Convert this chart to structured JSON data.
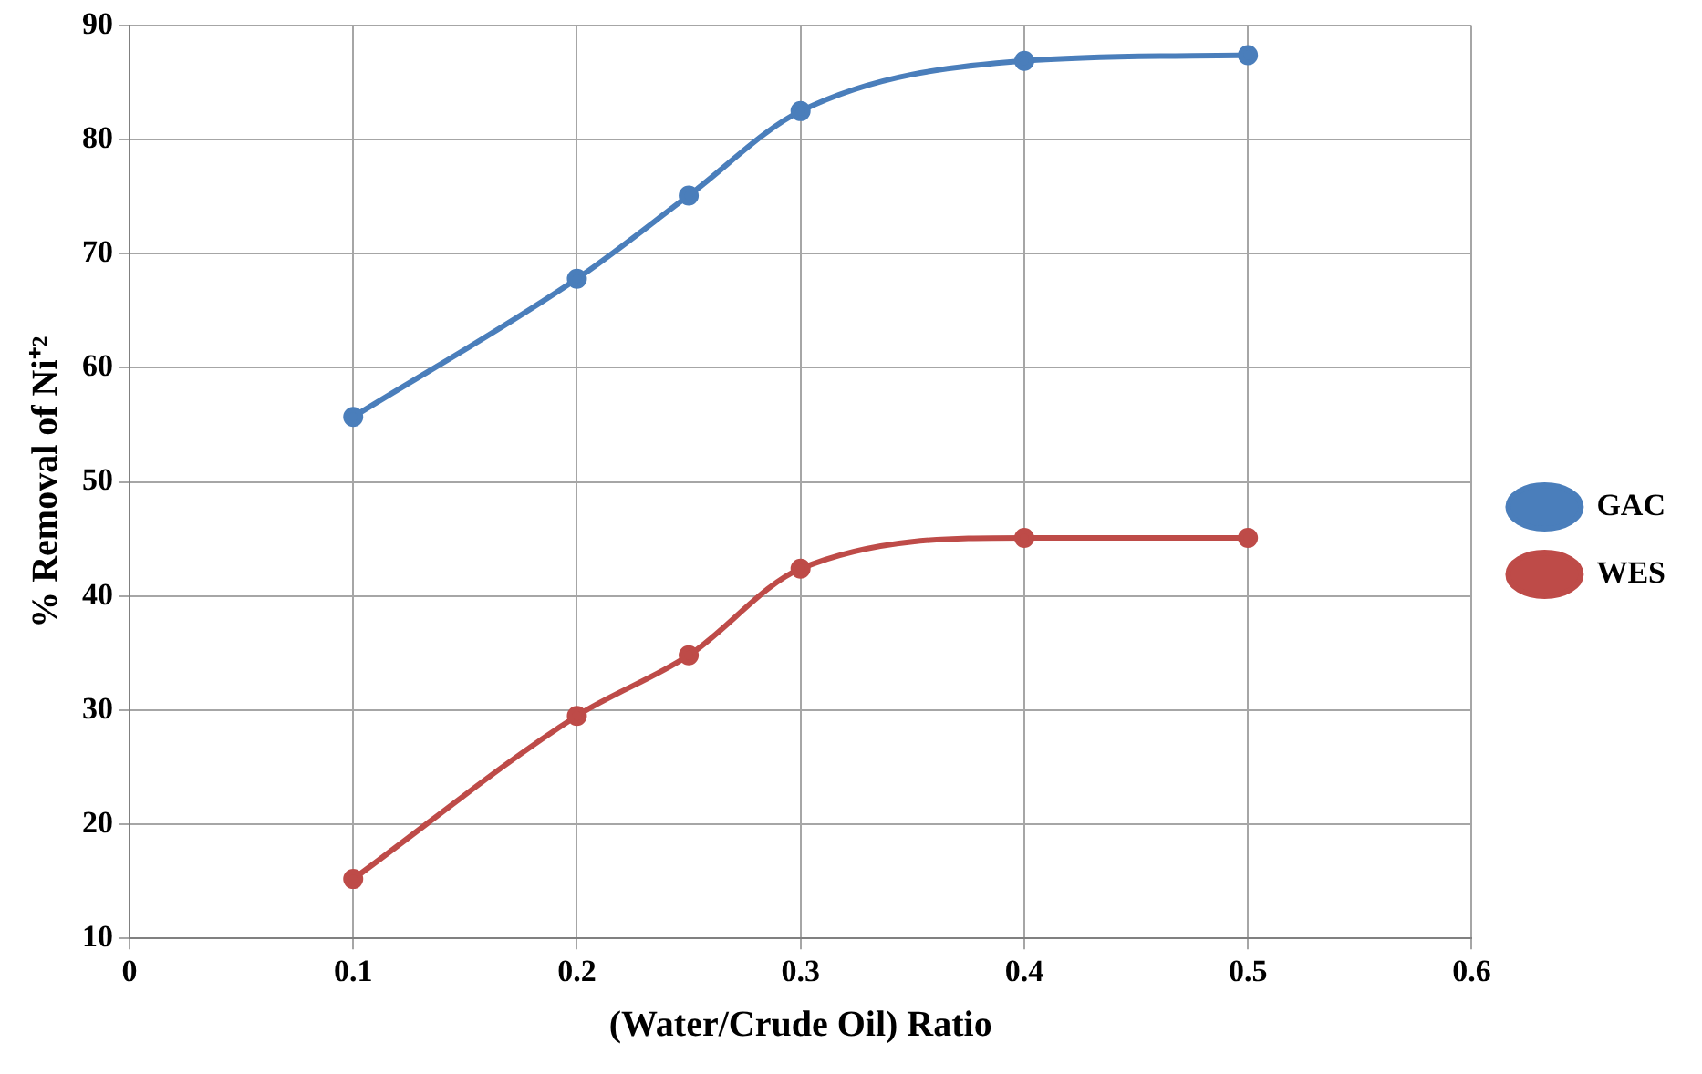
{
  "chart_data": {
    "type": "line",
    "xlabel": "(Water/Crude Oil) Ratio",
    "ylabel": "% Removal of Ni⁺²",
    "x": [
      0.1,
      0.2,
      0.25,
      0.3,
      0.4,
      0.5
    ],
    "series": [
      {
        "name": "GAC",
        "color": "#4a7ebb",
        "values": [
          55.7,
          67.8,
          75.1,
          82.5,
          86.9,
          87.4
        ]
      },
      {
        "name": "WES",
        "color": "#be4b48",
        "values": [
          15.2,
          29.5,
          34.8,
          42.4,
          45.1,
          45.1
        ]
      }
    ],
    "xlim": [
      0,
      0.6
    ],
    "xticks": [
      0,
      0.1,
      0.2,
      0.3,
      0.4,
      0.5,
      0.6
    ],
    "ylim": [
      10,
      90
    ],
    "yticks": [
      10,
      20,
      30,
      40,
      50,
      60,
      70,
      80,
      90
    ],
    "grid": true,
    "legend": "right",
    "marker": "circle",
    "line_style": "solid"
  }
}
